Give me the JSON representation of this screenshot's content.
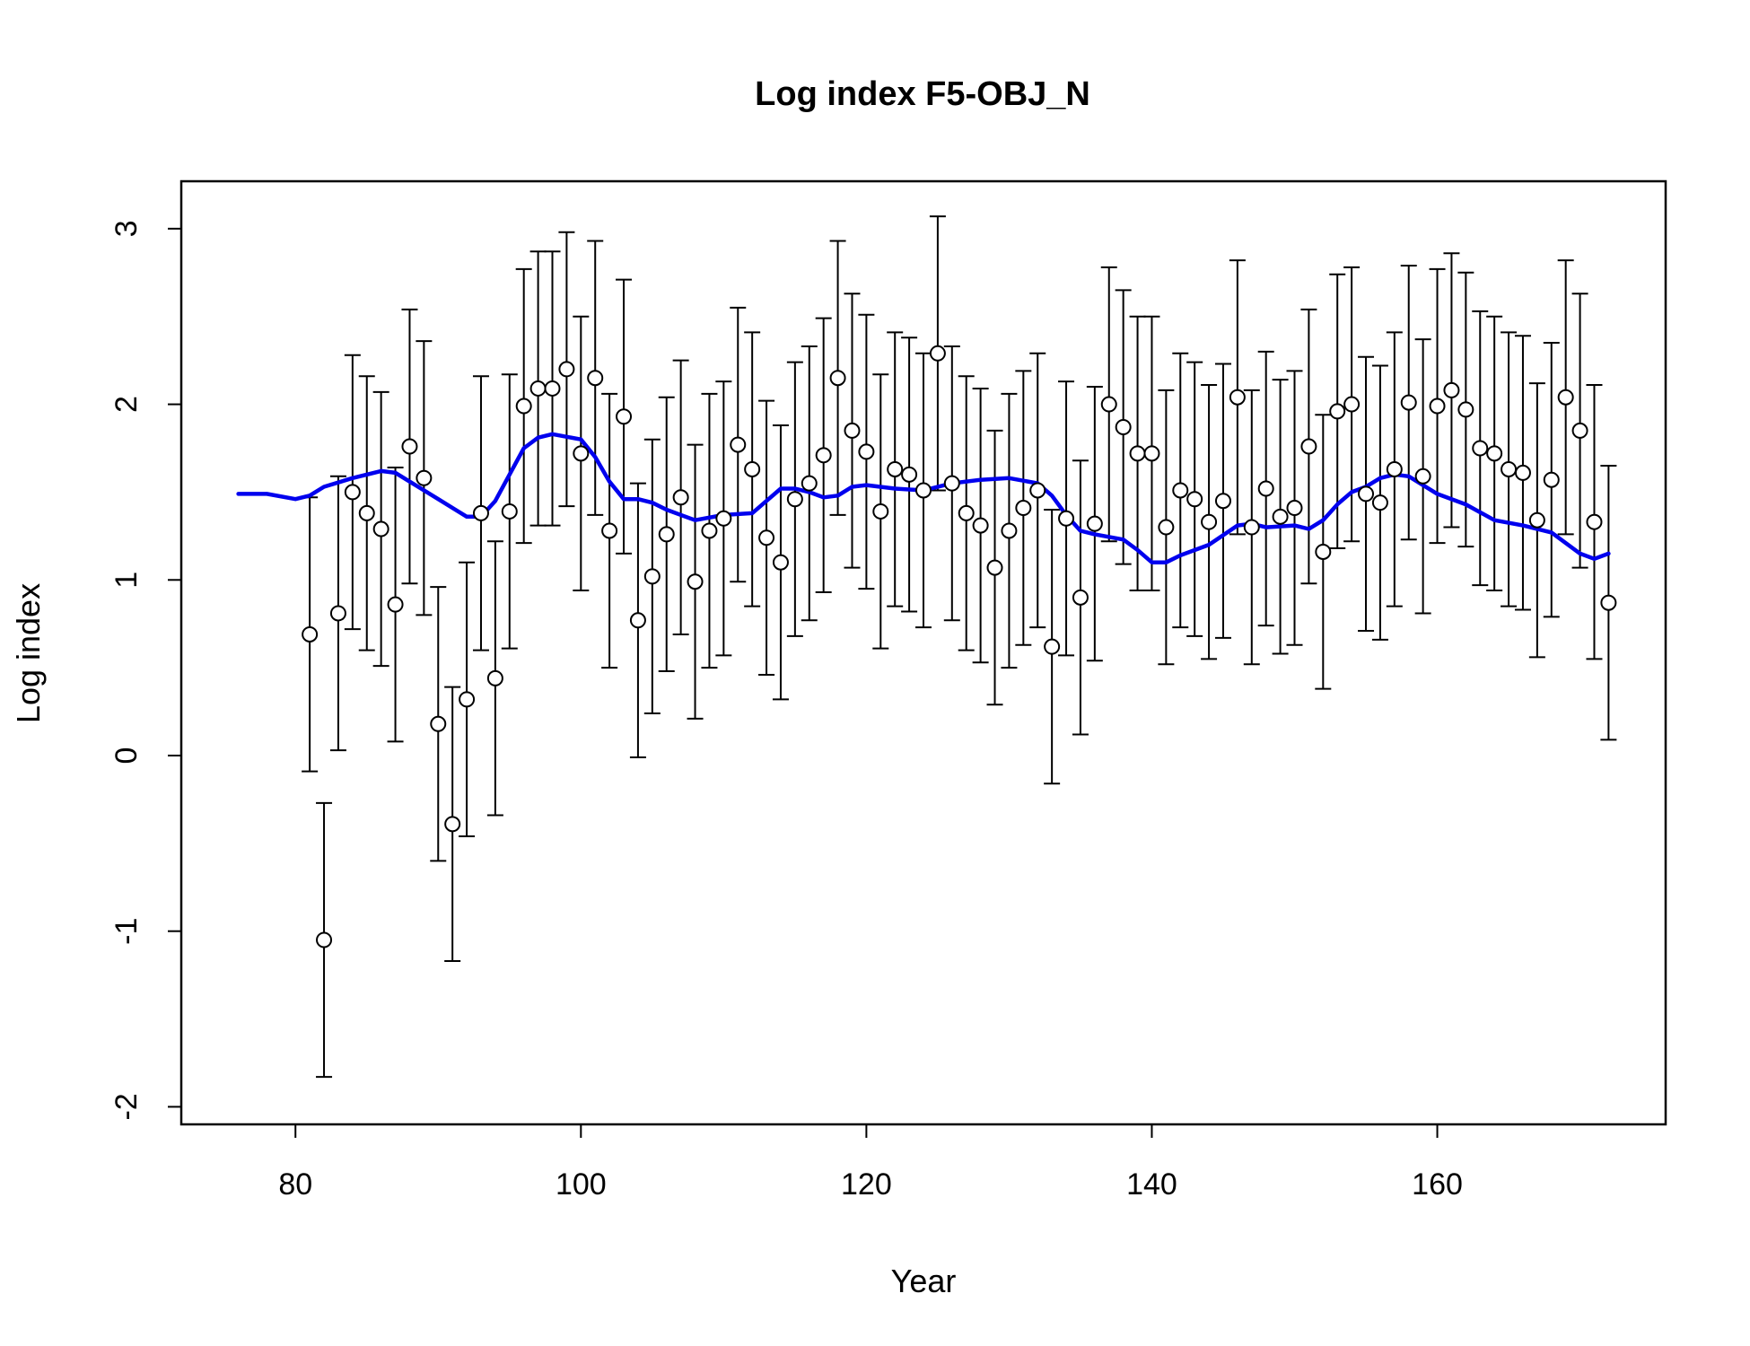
{
  "chart_data": {
    "type": "scatter",
    "title": "Log index F5-OBJ_N",
    "xlabel": "Year",
    "ylabel": "Log index",
    "xlim": [
      72,
      176
    ],
    "ylim": [
      -2.1,
      3.27
    ],
    "xticks": [
      80,
      100,
      120,
      140,
      160
    ],
    "yticks": [
      -2,
      -1,
      0,
      1,
      2,
      3
    ],
    "grid": false,
    "legend": "none",
    "colors": {
      "observed": "#000000",
      "fitted": "#0000ee"
    },
    "observed": {
      "x": [
        81,
        82,
        83,
        84,
        85,
        86,
        87,
        88,
        89,
        90,
        91,
        92,
        93,
        94,
        95,
        96,
        97,
        98,
        99,
        100,
        101,
        102,
        103,
        104,
        105,
        106,
        107,
        108,
        109,
        110,
        111,
        112,
        113,
        114,
        115,
        116,
        117,
        118,
        119,
        120,
        121,
        122,
        123,
        124,
        125,
        126,
        127,
        128,
        129,
        130,
        131,
        132,
        133,
        134,
        135,
        136,
        137,
        138,
        139,
        140,
        141,
        142,
        143,
        144,
        145,
        146,
        147,
        148,
        149,
        150,
        151,
        152,
        153,
        154,
        155,
        156,
        157,
        158,
        159,
        160,
        161,
        162,
        163,
        164,
        165,
        166,
        167,
        168,
        169,
        170,
        171,
        172
      ],
      "y": [
        0.69,
        -1.05,
        0.81,
        1.5,
        1.38,
        1.29,
        0.86,
        1.76,
        1.58,
        0.18,
        -0.39,
        0.32,
        1.38,
        0.44,
        1.39,
        1.99,
        2.09,
        2.09,
        2.2,
        1.72,
        2.15,
        1.28,
        1.93,
        0.77,
        1.02,
        1.26,
        1.47,
        0.99,
        1.28,
        1.35,
        1.77,
        1.63,
        1.24,
        1.1,
        1.46,
        1.55,
        1.71,
        2.15,
        1.85,
        1.73,
        1.39,
        1.63,
        1.6,
        1.51,
        2.29,
        1.55,
        1.38,
        1.31,
        1.07,
        1.28,
        1.41,
        1.51,
        0.62,
        1.35,
        0.9,
        1.32,
        2.0,
        1.87,
        1.72,
        1.72,
        1.3,
        1.51,
        1.46,
        1.33,
        1.45,
        2.04,
        1.3,
        1.52,
        1.36,
        1.41,
        1.76,
        1.16,
        1.96,
        2.0,
        1.49,
        1.44,
        1.63,
        2.01,
        1.59,
        1.99,
        2.08,
        1.97,
        1.75,
        1.72,
        1.63,
        1.61,
        1.34,
        1.57,
        2.04,
        1.85,
        1.33,
        0.87
      ],
      "lower": [
        -0.09,
        -1.83,
        0.03,
        0.72,
        0.6,
        0.51,
        0.08,
        0.98,
        0.8,
        -0.6,
        -1.17,
        -0.46,
        0.6,
        -0.34,
        0.61,
        1.21,
        1.31,
        1.31,
        1.42,
        0.94,
        1.37,
        0.5,
        1.15,
        -0.01,
        0.24,
        0.48,
        0.69,
        0.21,
        0.5,
        0.57,
        0.99,
        0.85,
        0.46,
        0.32,
        0.68,
        0.77,
        0.93,
        1.37,
        1.07,
        0.95,
        0.61,
        0.85,
        0.82,
        0.73,
        1.51,
        0.77,
        0.6,
        0.53,
        0.29,
        0.5,
        0.63,
        0.73,
        -0.16,
        0.57,
        0.12,
        0.54,
        1.22,
        1.09,
        0.94,
        0.94,
        0.52,
        0.73,
        0.68,
        0.55,
        0.67,
        1.26,
        0.52,
        0.74,
        0.58,
        0.63,
        0.98,
        0.38,
        1.18,
        1.22,
        0.71,
        0.66,
        0.85,
        1.23,
        0.81,
        1.21,
        1.3,
        1.19,
        0.97,
        0.94,
        0.85,
        0.83,
        0.56,
        0.79,
        1.26,
        1.07,
        0.55,
        0.09
      ],
      "upper": [
        1.47,
        -0.27,
        1.59,
        2.28,
        2.16,
        2.07,
        1.64,
        2.54,
        2.36,
        0.96,
        0.39,
        1.1,
        2.16,
        1.22,
        2.17,
        2.77,
        2.87,
        2.87,
        2.98,
        2.5,
        2.93,
        2.06,
        2.71,
        1.55,
        1.8,
        2.04,
        2.25,
        1.77,
        2.06,
        2.13,
        2.55,
        2.41,
        2.02,
        1.88,
        2.24,
        2.33,
        2.49,
        2.93,
        2.63,
        2.51,
        2.17,
        2.41,
        2.38,
        2.29,
        3.07,
        2.33,
        2.16,
        2.09,
        1.85,
        2.06,
        2.19,
        2.29,
        1.4,
        2.13,
        1.68,
        2.1,
        2.78,
        2.65,
        2.5,
        2.5,
        2.08,
        2.29,
        2.24,
        2.11,
        2.23,
        2.82,
        2.08,
        2.3,
        2.14,
        2.19,
        2.54,
        1.94,
        2.74,
        2.78,
        2.27,
        2.22,
        2.41,
        2.79,
        2.37,
        2.77,
        2.86,
        2.75,
        2.53,
        2.5,
        2.41,
        2.39,
        2.12,
        2.35,
        2.82,
        2.63,
        2.11,
        1.65
      ]
    },
    "fitted": {
      "x": [
        76,
        78,
        80,
        81,
        82,
        84,
        86,
        87,
        88,
        90,
        92,
        93,
        94,
        95,
        96,
        97,
        98,
        100,
        101,
        102,
        103,
        104,
        105,
        106,
        108,
        110,
        112,
        113,
        114,
        115,
        116,
        117,
        118,
        119,
        120,
        122,
        124,
        126,
        128,
        130,
        132,
        133,
        134,
        135,
        136,
        138,
        139,
        140,
        141,
        142,
        144,
        146,
        147,
        148,
        150,
        151,
        152,
        153,
        154,
        155,
        156,
        157,
        158,
        160,
        162,
        164,
        166,
        168,
        170,
        171,
        172
      ],
      "y": [
        1.49,
        1.49,
        1.46,
        1.48,
        1.53,
        1.58,
        1.62,
        1.61,
        1.56,
        1.46,
        1.36,
        1.36,
        1.45,
        1.6,
        1.75,
        1.81,
        1.83,
        1.8,
        1.7,
        1.56,
        1.46,
        1.46,
        1.44,
        1.4,
        1.34,
        1.37,
        1.38,
        1.45,
        1.52,
        1.52,
        1.5,
        1.47,
        1.48,
        1.53,
        1.54,
        1.52,
        1.51,
        1.55,
        1.57,
        1.58,
        1.55,
        1.48,
        1.37,
        1.28,
        1.26,
        1.23,
        1.17,
        1.1,
        1.1,
        1.14,
        1.2,
        1.31,
        1.32,
        1.3,
        1.31,
        1.29,
        1.34,
        1.43,
        1.5,
        1.53,
        1.58,
        1.6,
        1.59,
        1.49,
        1.43,
        1.34,
        1.31,
        1.27,
        1.15,
        1.12,
        1.15
      ]
    }
  }
}
